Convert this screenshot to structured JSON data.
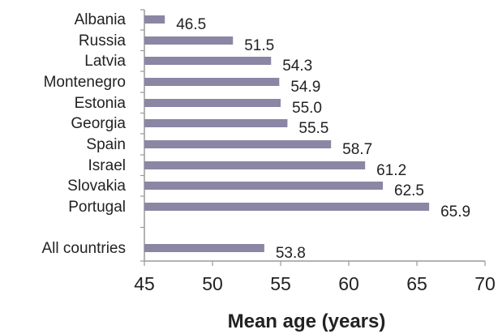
{
  "chart_data": {
    "type": "bar",
    "orientation": "horizontal",
    "categories": [
      "Albania",
      "Russia",
      "Latvia",
      "Montenegro",
      "Estonia",
      "Georgia",
      "Spain",
      "Israel",
      "Slovakia",
      "Portugal",
      "All countries"
    ],
    "values": [
      46.5,
      51.5,
      54.3,
      54.9,
      55.0,
      55.5,
      58.7,
      61.2,
      62.5,
      65.9,
      53.8
    ],
    "value_labels": [
      "46.5",
      "51.5",
      "54.3",
      "54.9",
      "55.0",
      "55.5",
      "58.7",
      "61.2",
      "62.5",
      "65.9",
      "53.8"
    ],
    "xlabel": "Mean age (years)",
    "xlim": [
      45,
      70
    ],
    "xticks": [
      "45",
      "50",
      "55",
      "60",
      "65",
      "70"
    ],
    "grid": false,
    "bar_color": "#8a86a4"
  }
}
